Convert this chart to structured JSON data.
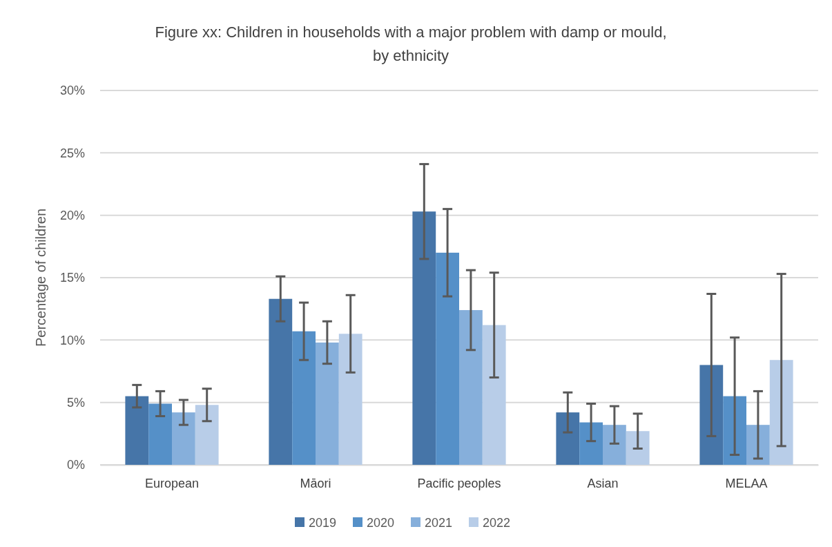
{
  "chart_data": {
    "type": "bar",
    "title": "Figure xx: Children in households with a major problem with damp or mould,\nby ethnicity",
    "ylabel": "Percentage of children",
    "categories": [
      "European",
      "Māori",
      "Pacific peoples",
      "Asian",
      "MELAA"
    ],
    "series": [
      {
        "name": "2019",
        "color": "#4675a8",
        "values": [
          5.5,
          13.3,
          20.3,
          4.2,
          8.0
        ],
        "errors": [
          [
            4.6,
            6.4
          ],
          [
            11.5,
            15.1
          ],
          [
            16.5,
            24.1
          ],
          [
            2.6,
            5.8
          ],
          [
            2.3,
            13.7
          ]
        ]
      },
      {
        "name": "2020",
        "color": "#5590c8",
        "values": [
          4.9,
          10.7,
          17.0,
          3.4,
          5.5
        ],
        "errors": [
          [
            3.9,
            5.9
          ],
          [
            8.4,
            13.0
          ],
          [
            13.5,
            20.5
          ],
          [
            1.9,
            4.9
          ],
          [
            0.8,
            10.2
          ]
        ]
      },
      {
        "name": "2021",
        "color": "#86afdb",
        "values": [
          4.2,
          9.8,
          12.4,
          3.2,
          3.2
        ],
        "errors": [
          [
            3.2,
            5.2
          ],
          [
            8.1,
            11.5
          ],
          [
            9.2,
            15.6
          ],
          [
            1.7,
            4.7
          ],
          [
            0.5,
            5.9
          ]
        ]
      },
      {
        "name": "2022",
        "color": "#b8cde8",
        "values": [
          4.8,
          10.5,
          11.2,
          2.7,
          8.4
        ],
        "errors": [
          [
            3.5,
            6.1
          ],
          [
            7.4,
            13.6
          ],
          [
            7.0,
            15.4
          ],
          [
            1.3,
            4.1
          ],
          [
            1.5,
            15.3
          ]
        ]
      }
    ],
    "ylim": [
      0,
      30
    ],
    "yticks": [
      {
        "value": 0,
        "label": "0%"
      },
      {
        "value": 5,
        "label": "5%"
      },
      {
        "value": 10,
        "label": "10%"
      },
      {
        "value": 15,
        "label": "15%"
      },
      {
        "value": 20,
        "label": "20%"
      },
      {
        "value": 25,
        "label": "25%"
      },
      {
        "value": 30,
        "label": "30%"
      }
    ],
    "grid": "y",
    "legend": "bottom"
  }
}
